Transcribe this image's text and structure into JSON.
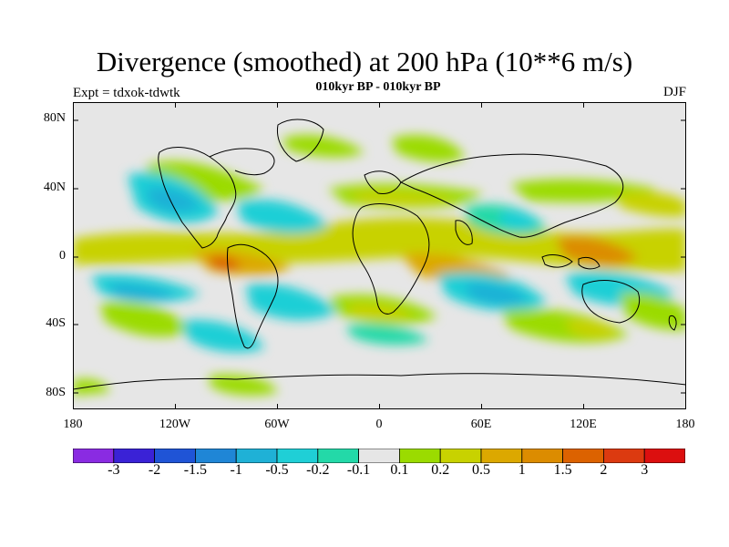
{
  "header": {
    "title": "Divergence (smoothed) at 200 hPa (10**6 m/s)",
    "subtitle": "010kyr BP - 010kyr BP",
    "experiment": "Expt = tdxok-tdwtk",
    "season": "DJF"
  },
  "map": {
    "lat_ticks": [
      "80N",
      "40N",
      "0",
      "40S",
      "80S"
    ],
    "lon_ticks": [
      "180",
      "120W",
      "60W",
      "0",
      "60E",
      "120E",
      "180"
    ],
    "background_color": "#e6e6e6",
    "coastline_color": "#000000"
  },
  "colorbar": {
    "colors": [
      "#8a2be2",
      "#3a22d6",
      "#1f54d6",
      "#1f86d6",
      "#1fb1d6",
      "#1fcfd6",
      "#23d9a8",
      "#e6e6e6",
      "#9bdb00",
      "#c8d200",
      "#dca800",
      "#dc8c00",
      "#dc6200",
      "#dc3a10",
      "#dc0f0f"
    ],
    "labels": [
      "-3",
      "-2",
      "-1.5",
      "-1",
      "-0.5",
      "-0.2",
      "-0.1",
      "0.1",
      "0.2",
      "0.5",
      "1",
      "1.5",
      "2",
      "3"
    ]
  }
}
